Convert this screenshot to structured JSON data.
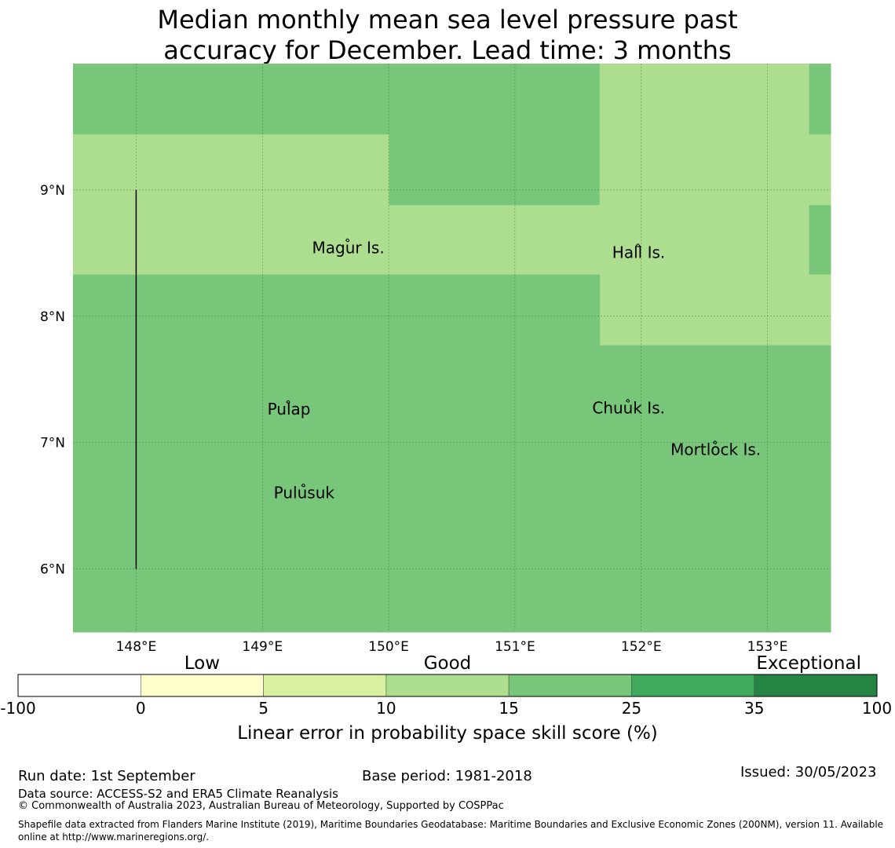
{
  "title": {
    "line1": "Median monthly mean sea level pressure past",
    "line2": "accuracy for December. Lead time: 3 months"
  },
  "map": {
    "lon_range": [
      147.5,
      153.5
    ],
    "lat_range": [
      5.5,
      10.0
    ],
    "lon_ticks": [
      {
        "value": 148,
        "label": "148°E"
      },
      {
        "value": 149,
        "label": "149°E"
      },
      {
        "value": 150,
        "label": "150°E"
      },
      {
        "value": 151,
        "label": "151°E"
      },
      {
        "value": 152,
        "label": "152°E"
      },
      {
        "value": 153,
        "label": "153°E"
      }
    ],
    "lat_ticks": [
      {
        "value": 6,
        "label": "6°N"
      },
      {
        "value": 7,
        "label": "7°N"
      },
      {
        "value": 8,
        "label": "8°N"
      },
      {
        "value": 9,
        "label": "9°N"
      }
    ],
    "grid": true,
    "skill_cells": [
      {
        "lon": [
          147.5,
          150.0
        ],
        "lat": [
          9.44,
          10.0
        ],
        "score_bin": "15-25"
      },
      {
        "lon": [
          150.0,
          151.67
        ],
        "lat": [
          8.88,
          10.0
        ],
        "score_bin": "15-25"
      },
      {
        "lon": [
          151.67,
          153.33
        ],
        "lat": [
          7.77,
          10.0
        ],
        "score_bin": "10-15"
      },
      {
        "lon": [
          153.33,
          153.5
        ],
        "lat": [
          9.44,
          10.0
        ],
        "score_bin": "15-25"
      },
      {
        "lon": [
          147.5,
          150.0
        ],
        "lat": [
          8.33,
          9.44
        ],
        "score_bin": "10-15"
      },
      {
        "lon": [
          150.0,
          151.67
        ],
        "lat": [
          8.33,
          8.88
        ],
        "score_bin": "10-15"
      },
      {
        "lon": [
          153.33,
          153.5
        ],
        "lat": [
          8.88,
          9.44
        ],
        "score_bin": "10-15"
      },
      {
        "lon": [
          153.33,
          153.5
        ],
        "lat": [
          8.33,
          8.88
        ],
        "score_bin": "15-25"
      },
      {
        "lon": [
          153.33,
          153.5
        ],
        "lat": [
          7.77,
          8.33
        ],
        "score_bin": "10-15"
      },
      {
        "lon": [
          147.5,
          151.67
        ],
        "lat": [
          5.5,
          8.33
        ],
        "score_bin": "15-25"
      },
      {
        "lon": [
          151.67,
          153.5
        ],
        "lat": [
          5.5,
          7.77
        ],
        "score_bin": "15-25"
      }
    ],
    "boundary_line": {
      "lon": 148.0,
      "lat": [
        6.0,
        9.0
      ]
    },
    "places": [
      {
        "name": "Magur Is.",
        "lon": 149.68,
        "lat": 8.55
      },
      {
        "name": "Hall Is.",
        "lon": 151.98,
        "lat": 8.51
      },
      {
        "name": "Pulap",
        "lon": 149.21,
        "lat": 7.27
      },
      {
        "name": "Chuuk Is.",
        "lon": 151.9,
        "lat": 7.28
      },
      {
        "name": "Mortlock Is.",
        "lon": 152.59,
        "lat": 6.95
      },
      {
        "name": "Pulusuk",
        "lon": 149.33,
        "lat": 6.61
      }
    ]
  },
  "legend": {
    "categories": [
      "Low",
      "Good",
      "Exceptional"
    ],
    "bins": [
      {
        "from": "-100",
        "to": "0",
        "color": "#ffffff"
      },
      {
        "from": "0",
        "to": "5",
        "color": "#ffffcc"
      },
      {
        "from": "5",
        "to": "10",
        "color": "#d9f0a3"
      },
      {
        "from": "10",
        "to": "15",
        "color": "#addd8e"
      },
      {
        "from": "15",
        "to": "25",
        "color": "#78c679"
      },
      {
        "from": "25",
        "to": "35",
        "color": "#41ab5d"
      },
      {
        "from": "35",
        "to": "100",
        "color": "#238443"
      }
    ],
    "tick_labels": [
      "-100",
      "0",
      "5",
      "10",
      "15",
      "25",
      "35",
      "100"
    ],
    "label": "Linear error in probability space skill score (%)"
  },
  "footer": {
    "run_date": "Run date: 1st September",
    "base_period": "Base period: 1981-2018",
    "issued": "Issued: 30/05/2023",
    "data_source": "Data source: ACCESS-S2 and ERA5 Climate Reanalysis",
    "copyright": "© Commonwealth of Australia 2023, Australian Bureau of Meteorology, Supported by COSPPac",
    "shapefile": "Shapefile data extracted from Flanders Marine Institute (2019), Maritime Boundaries Geodatabase: Maritime Boundaries and Exclusive Economic Zones (200NM), version 11. Available online at http://www.marineregions.org/."
  }
}
